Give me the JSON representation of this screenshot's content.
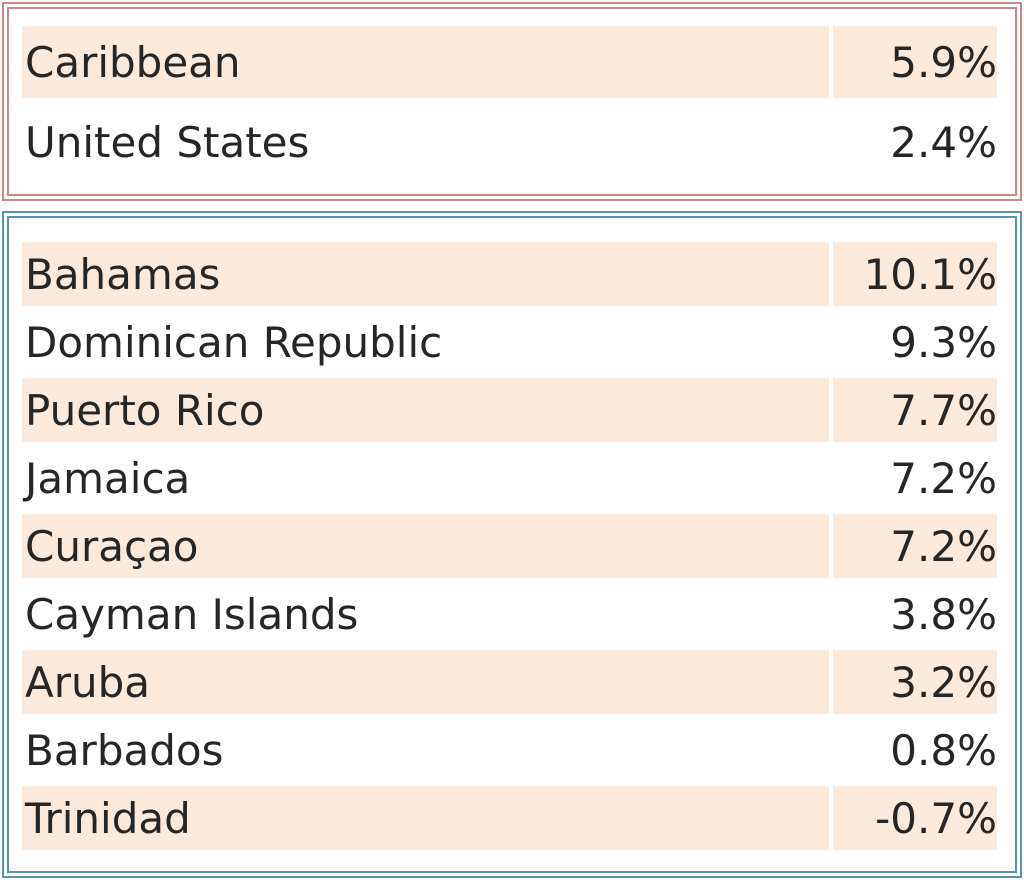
{
  "summary_rows": [
    {
      "name": "Caribbean",
      "value": "5.9%"
    },
    {
      "name": "United States",
      "value": "2.4%"
    }
  ],
  "country_rows": [
    {
      "name": "Bahamas",
      "value": "10.1%"
    },
    {
      "name": "Dominican Republic",
      "value": "9.3%"
    },
    {
      "name": "Puerto Rico",
      "value": "7.7%"
    },
    {
      "name": "Jamaica",
      "value": "7.2%"
    },
    {
      "name": "Curaçao",
      "value": "7.2%"
    },
    {
      "name": "Cayman Islands",
      "value": "3.8%"
    },
    {
      "name": "Aruba",
      "value": "3.2%"
    },
    {
      "name": "Barbados",
      "value": "0.8%"
    },
    {
      "name": "Trinidad",
      "value": "-0.7%"
    }
  ],
  "colors": {
    "summary_border": "#d08783",
    "countries_border": "#5b93a8",
    "row_shade": "#fbe9dc",
    "text": "#262626"
  }
}
